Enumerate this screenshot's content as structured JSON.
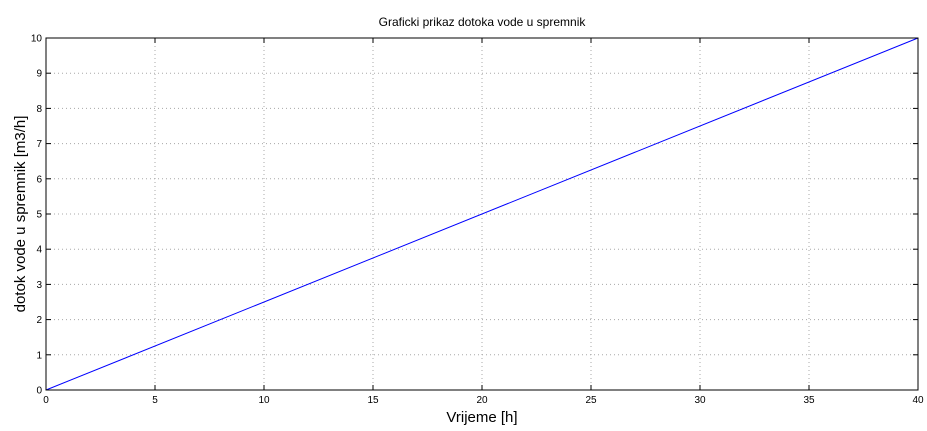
{
  "chart_data": {
    "type": "line",
    "title": "Graficki prikaz dotoka vode u spremnik",
    "xlabel": "Vrijeme [h]",
    "ylabel": "dotok vode u spremnik [m3/h]",
    "xlim": [
      0,
      40
    ],
    "ylim": [
      0,
      10
    ],
    "xticks": [
      0,
      5,
      10,
      15,
      20,
      25,
      30,
      35,
      40
    ],
    "yticks": [
      0,
      1,
      2,
      3,
      4,
      5,
      6,
      7,
      8,
      9,
      10
    ],
    "grid": true,
    "series": [
      {
        "color": "#0000ff",
        "x": [
          0,
          40
        ],
        "y": [
          0,
          10
        ]
      }
    ]
  }
}
